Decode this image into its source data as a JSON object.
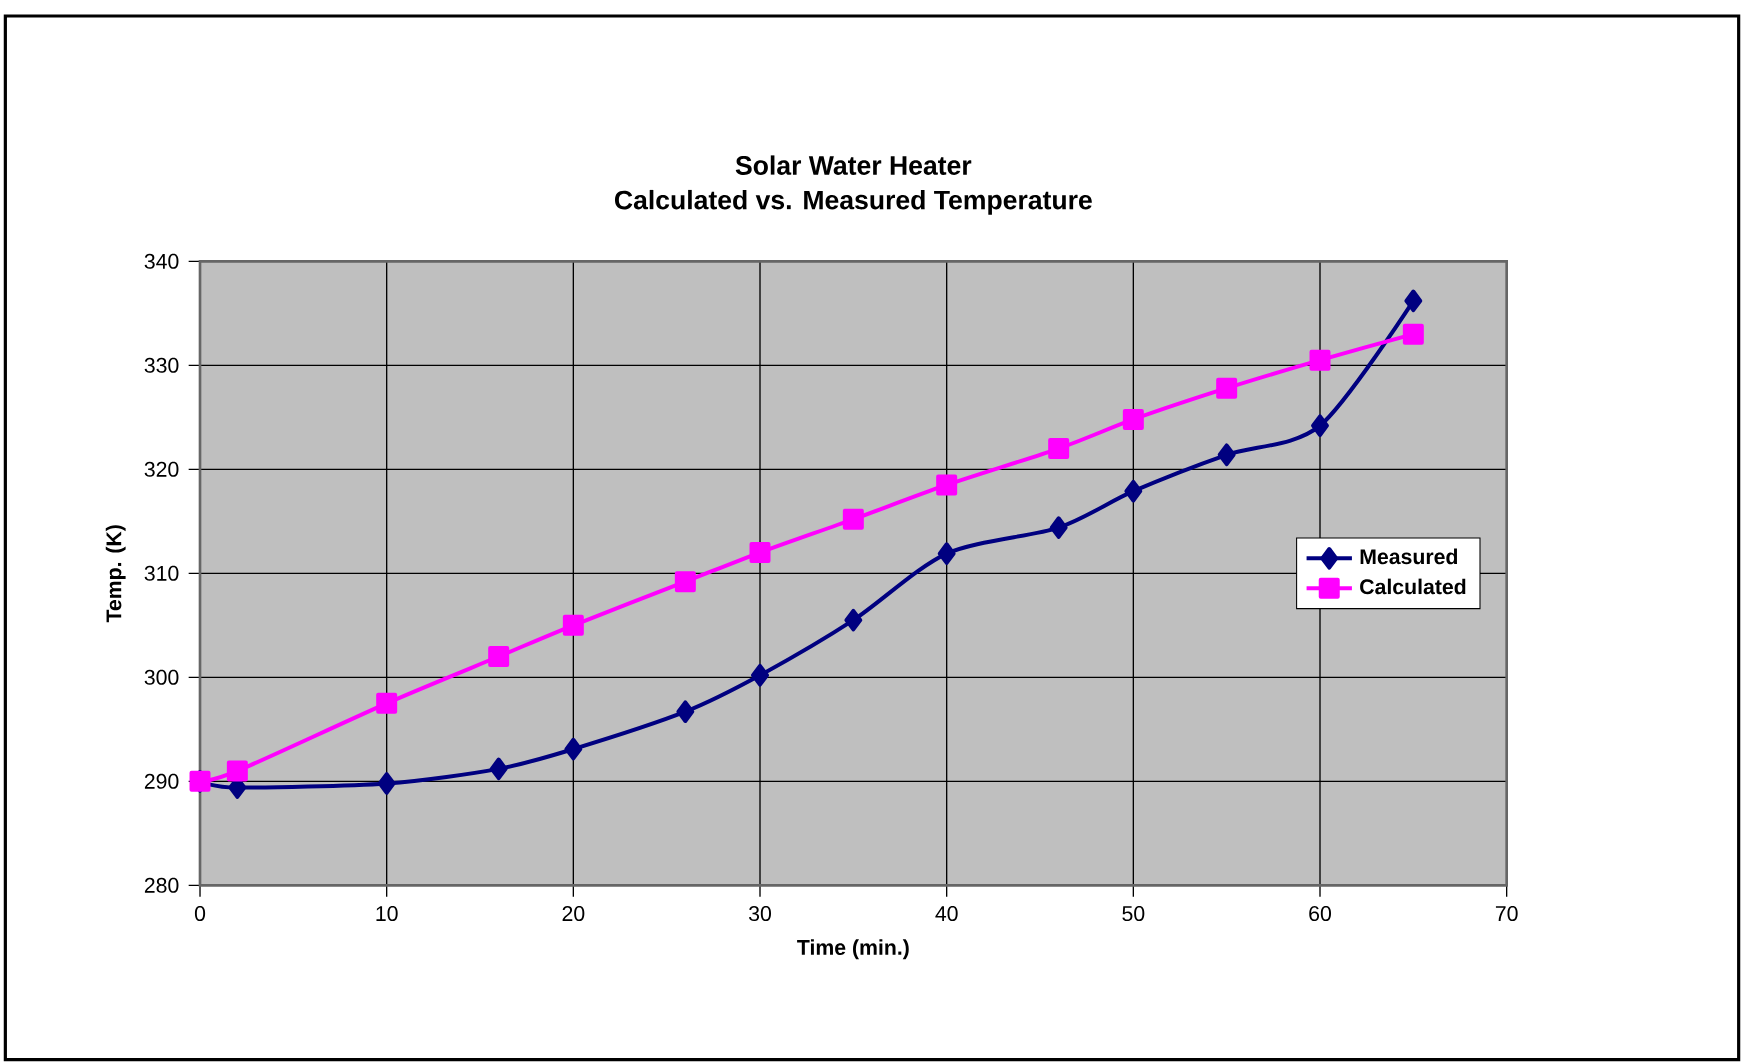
{
  "chart_data": {
    "type": "line",
    "title": "Solar Water Heater\nCalculated vs. Measured Temperature",
    "xlabel": "Time (min.)",
    "ylabel": "Temp. (K)",
    "xlim": [
      0,
      70
    ],
    "xticks": [
      0,
      10,
      20,
      30,
      40,
      50,
      60,
      70
    ],
    "ylim": [
      280,
      340
    ],
    "yticks": [
      280,
      290,
      300,
      310,
      320,
      330,
      340
    ],
    "grid": true,
    "legend": "right",
    "x": [
      0,
      2,
      10,
      16,
      20,
      26,
      30,
      35,
      40,
      46,
      50,
      55,
      60,
      65
    ],
    "series": [
      {
        "name": "Measured",
        "color": "#000080",
        "marker": "diamond",
        "values": [
          290,
          289.4,
          289.8,
          291.2,
          293.1,
          296.7,
          300.2,
          305.5,
          311.9,
          314.4,
          317.9,
          321.4,
          324.2,
          336.2
        ]
      },
      {
        "name": "Calculated",
        "color": "#ff00ff",
        "marker": "square",
        "values": [
          290,
          291,
          297.5,
          302,
          305,
          309.2,
          312,
          315.2,
          318.5,
          322,
          324.8,
          327.8,
          330.5,
          333
        ]
      }
    ]
  }
}
